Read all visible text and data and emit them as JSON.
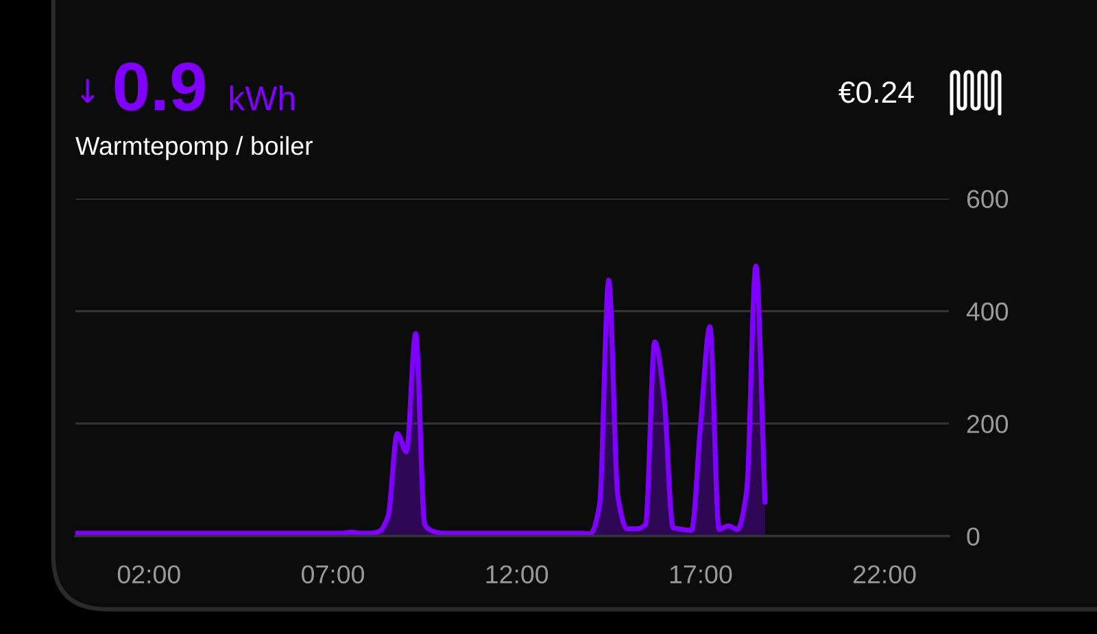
{
  "chart_data": {
    "type": "area",
    "title": "↓ 0.9 kWh",
    "subtitle": "Warmtepomp / boiler",
    "annotations": [
      "€0.24"
    ],
    "x": [
      0,
      1,
      2,
      3,
      4,
      5,
      6,
      7,
      7.25,
      7.5,
      7.75,
      8,
      8.25,
      8.5,
      8.75,
      9,
      9.25,
      9.5,
      9.75,
      10,
      11,
      12,
      13,
      13.75,
      14,
      14.25,
      14.5,
      14.75,
      15,
      15.25,
      15.5,
      15.75,
      16,
      16.25,
      16.5,
      16.75,
      17,
      17.25,
      17.5,
      17.75,
      18,
      18.25,
      18.5,
      18.75
    ],
    "series": [
      {
        "color": "#8000ff",
        "values": [
          5,
          5,
          5,
          5,
          5,
          5,
          5,
          5,
          5,
          7,
          5,
          5,
          8,
          35,
          182,
          150,
          360,
          20,
          8,
          5,
          5,
          5,
          5,
          5,
          4,
          55,
          455,
          70,
          13,
          13,
          20,
          345,
          250,
          15,
          12,
          10,
          200,
          372,
          12,
          18,
          12,
          80,
          480,
          60
        ]
      }
    ],
    "xlim": [
      0,
      23.75
    ],
    "xticks": [
      {
        "value": 2,
        "label": "02:00"
      },
      {
        "value": 7,
        "label": "07:00"
      },
      {
        "value": 12,
        "label": "12:00"
      },
      {
        "value": 17,
        "label": "17:00"
      },
      {
        "value": 22,
        "label": "22:00"
      }
    ],
    "ylim": [
      0,
      600
    ],
    "yticks": [
      0,
      200,
      400,
      600
    ],
    "grid": "y"
  }
}
